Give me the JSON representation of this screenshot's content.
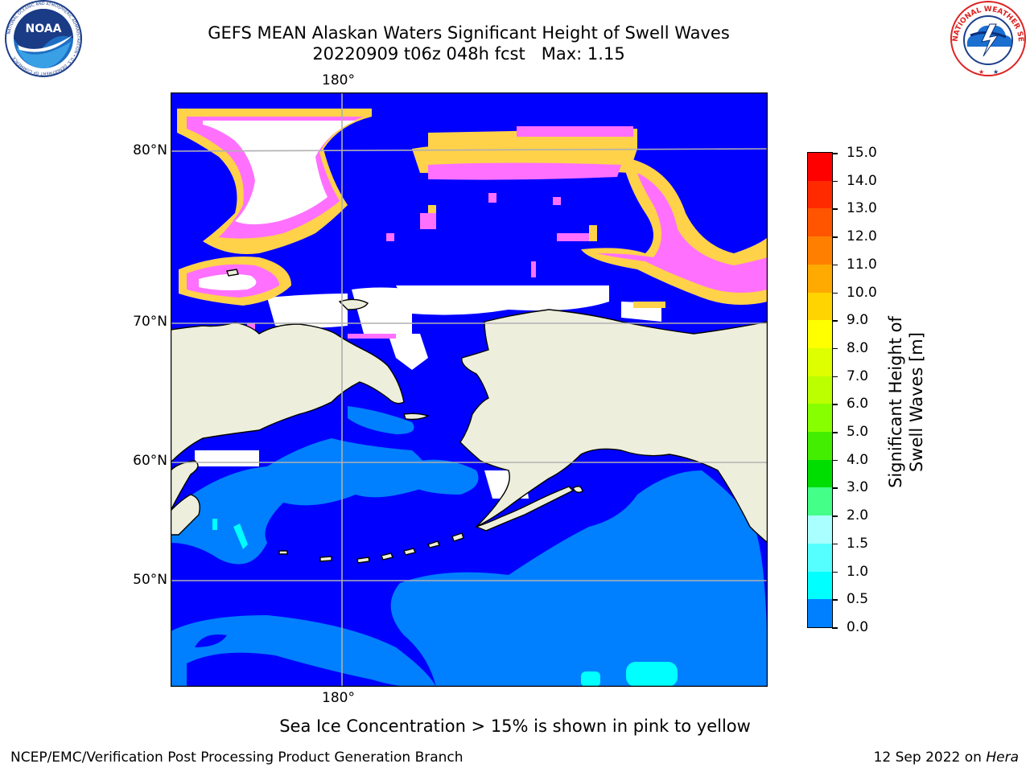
{
  "title_line1": "GEFS MEAN Alaskan Waters Significant Height of Swell Waves",
  "title_line2_run": "20220909 t06z 048h fcst",
  "title_line2_max": "Max: 1.15",
  "logos": {
    "noaa_text": "NOAA",
    "noaa_ring": "NATIONAL OCEANIC AND ATMOSPHERIC ADMINISTRATION • U.S. DEPARTMENT OF COMMERCE",
    "nws_ring": "NATIONAL WEATHER SERVICE"
  },
  "map": {
    "lon_labels": [
      "180°",
      "180°"
    ],
    "lat_labels": [
      "80°N",
      "70°N",
      "60°N",
      "50°N"
    ],
    "colors": {
      "ocean_low": "#0000ff",
      "ocean_mid": "#0080ff",
      "ocean_1_0": "#00ffff",
      "land": "#eeeedd",
      "ice_pink": "#ff70ff",
      "ice_yellow": "#ffd24a",
      "grid": "#b0b0b0"
    }
  },
  "colorbar": {
    "ticks": [
      "15.0",
      "14.0",
      "13.0",
      "12.0",
      "11.0",
      "10.0",
      "9.0",
      "8.0",
      "7.0",
      "6.0",
      "5.0",
      "4.0",
      "3.0",
      "2.0",
      "1.5",
      "1.0",
      "0.5",
      "0.0"
    ],
    "colors": [
      "#ff0000",
      "#ff2a00",
      "#ff5500",
      "#ff8000",
      "#ffaa00",
      "#ffd400",
      "#ffff00",
      "#ddff00",
      "#bbff00",
      "#88ff00",
      "#44ee00",
      "#00dd00",
      "#44ff88",
      "#aaffff",
      "#55ffff",
      "#00ffff",
      "#0080ff",
      "#0000ff"
    ],
    "label": "Significant Height of Swell Waves [m]"
  },
  "note": "Sea Ice Concentration > 15% is shown in pink to yellow",
  "footer_left": "NCEP/EMC/Verification Post Processing Product Generation Branch",
  "footer_date": "12 Sep 2022 on",
  "footer_host": "Hera"
}
